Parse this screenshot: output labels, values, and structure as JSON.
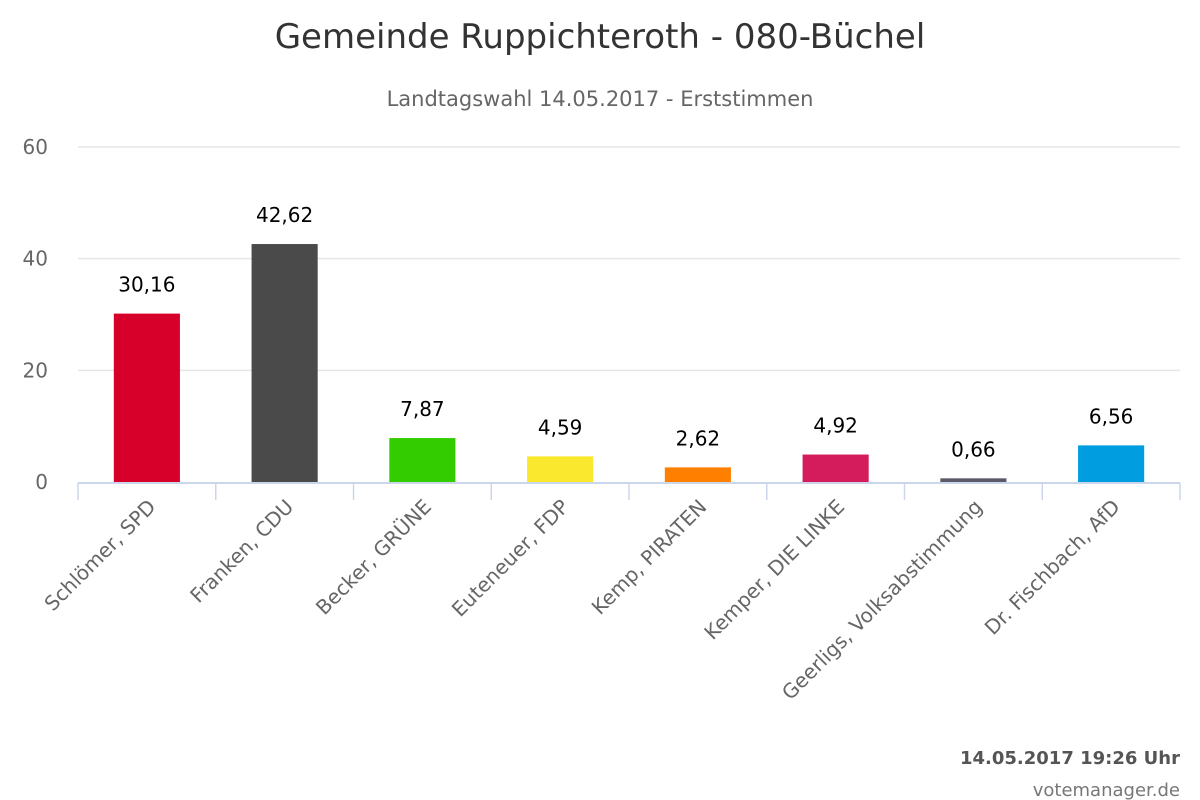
{
  "chart_data": {
    "type": "bar",
    "title": "Gemeinde Ruppichteroth - 080-Büchel",
    "subtitle": "Landtagswahl 14.05.2017 - Erststimmen",
    "categories": [
      "Schlömer, SPD",
      "Franken, CDU",
      "Becker, GRÜNE",
      "Euteneuer, FDP",
      "Kemp, PIRATEN",
      "Kemper, DIE LINKE",
      "Geerligs, Volksabstimmung",
      "Dr. Fischbach, AfD"
    ],
    "values": [
      30.16,
      42.62,
      7.87,
      4.59,
      2.62,
      4.92,
      0.66,
      6.56
    ],
    "value_labels": [
      "30,16",
      "42,62",
      "7,87",
      "4,59",
      "2,62",
      "4,92",
      "0,66",
      "6,56"
    ],
    "colors": [
      "#d7002a",
      "#4a4a4a",
      "#33cc00",
      "#f9e82d",
      "#ff8000",
      "#d41c5c",
      "#5a5a6a",
      "#009ee0"
    ],
    "ylim": [
      0,
      60
    ],
    "yticks": [
      0,
      20,
      40,
      60
    ],
    "grid": true,
    "xlabel": "",
    "ylabel": ""
  },
  "credits": {
    "timestamp": "14.05.2017 19:26 Uhr",
    "source": "votemanager.de"
  }
}
